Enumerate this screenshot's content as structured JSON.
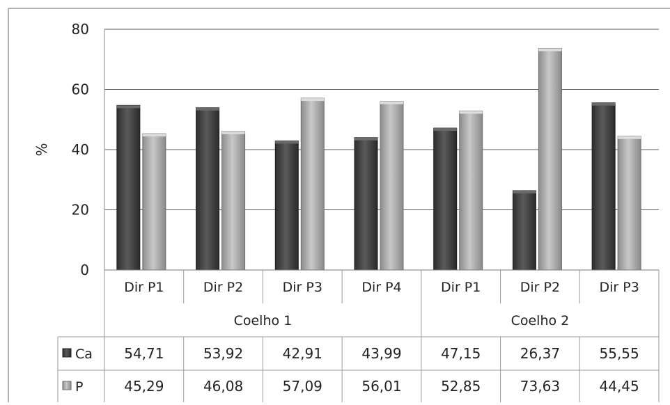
{
  "chart_data": {
    "type": "bar",
    "ylabel": "%",
    "ylim": [
      0,
      80
    ],
    "yticks": [
      "0",
      "20",
      "40",
      "60",
      "80"
    ],
    "grid": true,
    "legend": "data-table",
    "groups": [
      {
        "name": "Coelho 1",
        "categories": [
          "Dir P1",
          "Dir P2",
          "Dir P3",
          "Dir P4"
        ]
      },
      {
        "name": "Coelho 2",
        "categories": [
          "Dir P1",
          "Dir P2",
          "Dir P3"
        ]
      }
    ],
    "categories": [
      "Dir P1",
      "Dir P2",
      "Dir P3",
      "Dir P4",
      "Dir P1",
      "Dir P2",
      "Dir P3"
    ],
    "series": [
      {
        "name": "Ca",
        "color": "#4a4a4a",
        "values": [
          54.71,
          53.92,
          42.91,
          43.99,
          47.15,
          26.37,
          55.55
        ],
        "labels": [
          "54,71",
          "53,92",
          "42,91",
          "43,99",
          "47,15",
          "26,37",
          "55,55"
        ]
      },
      {
        "name": "P",
        "color": "#ababab",
        "values": [
          45.29,
          46.08,
          57.09,
          56.01,
          52.85,
          73.63,
          44.45
        ],
        "labels": [
          "45,29",
          "46,08",
          "57,09",
          "56,01",
          "52,85",
          "73,63",
          "44,45"
        ]
      }
    ]
  }
}
